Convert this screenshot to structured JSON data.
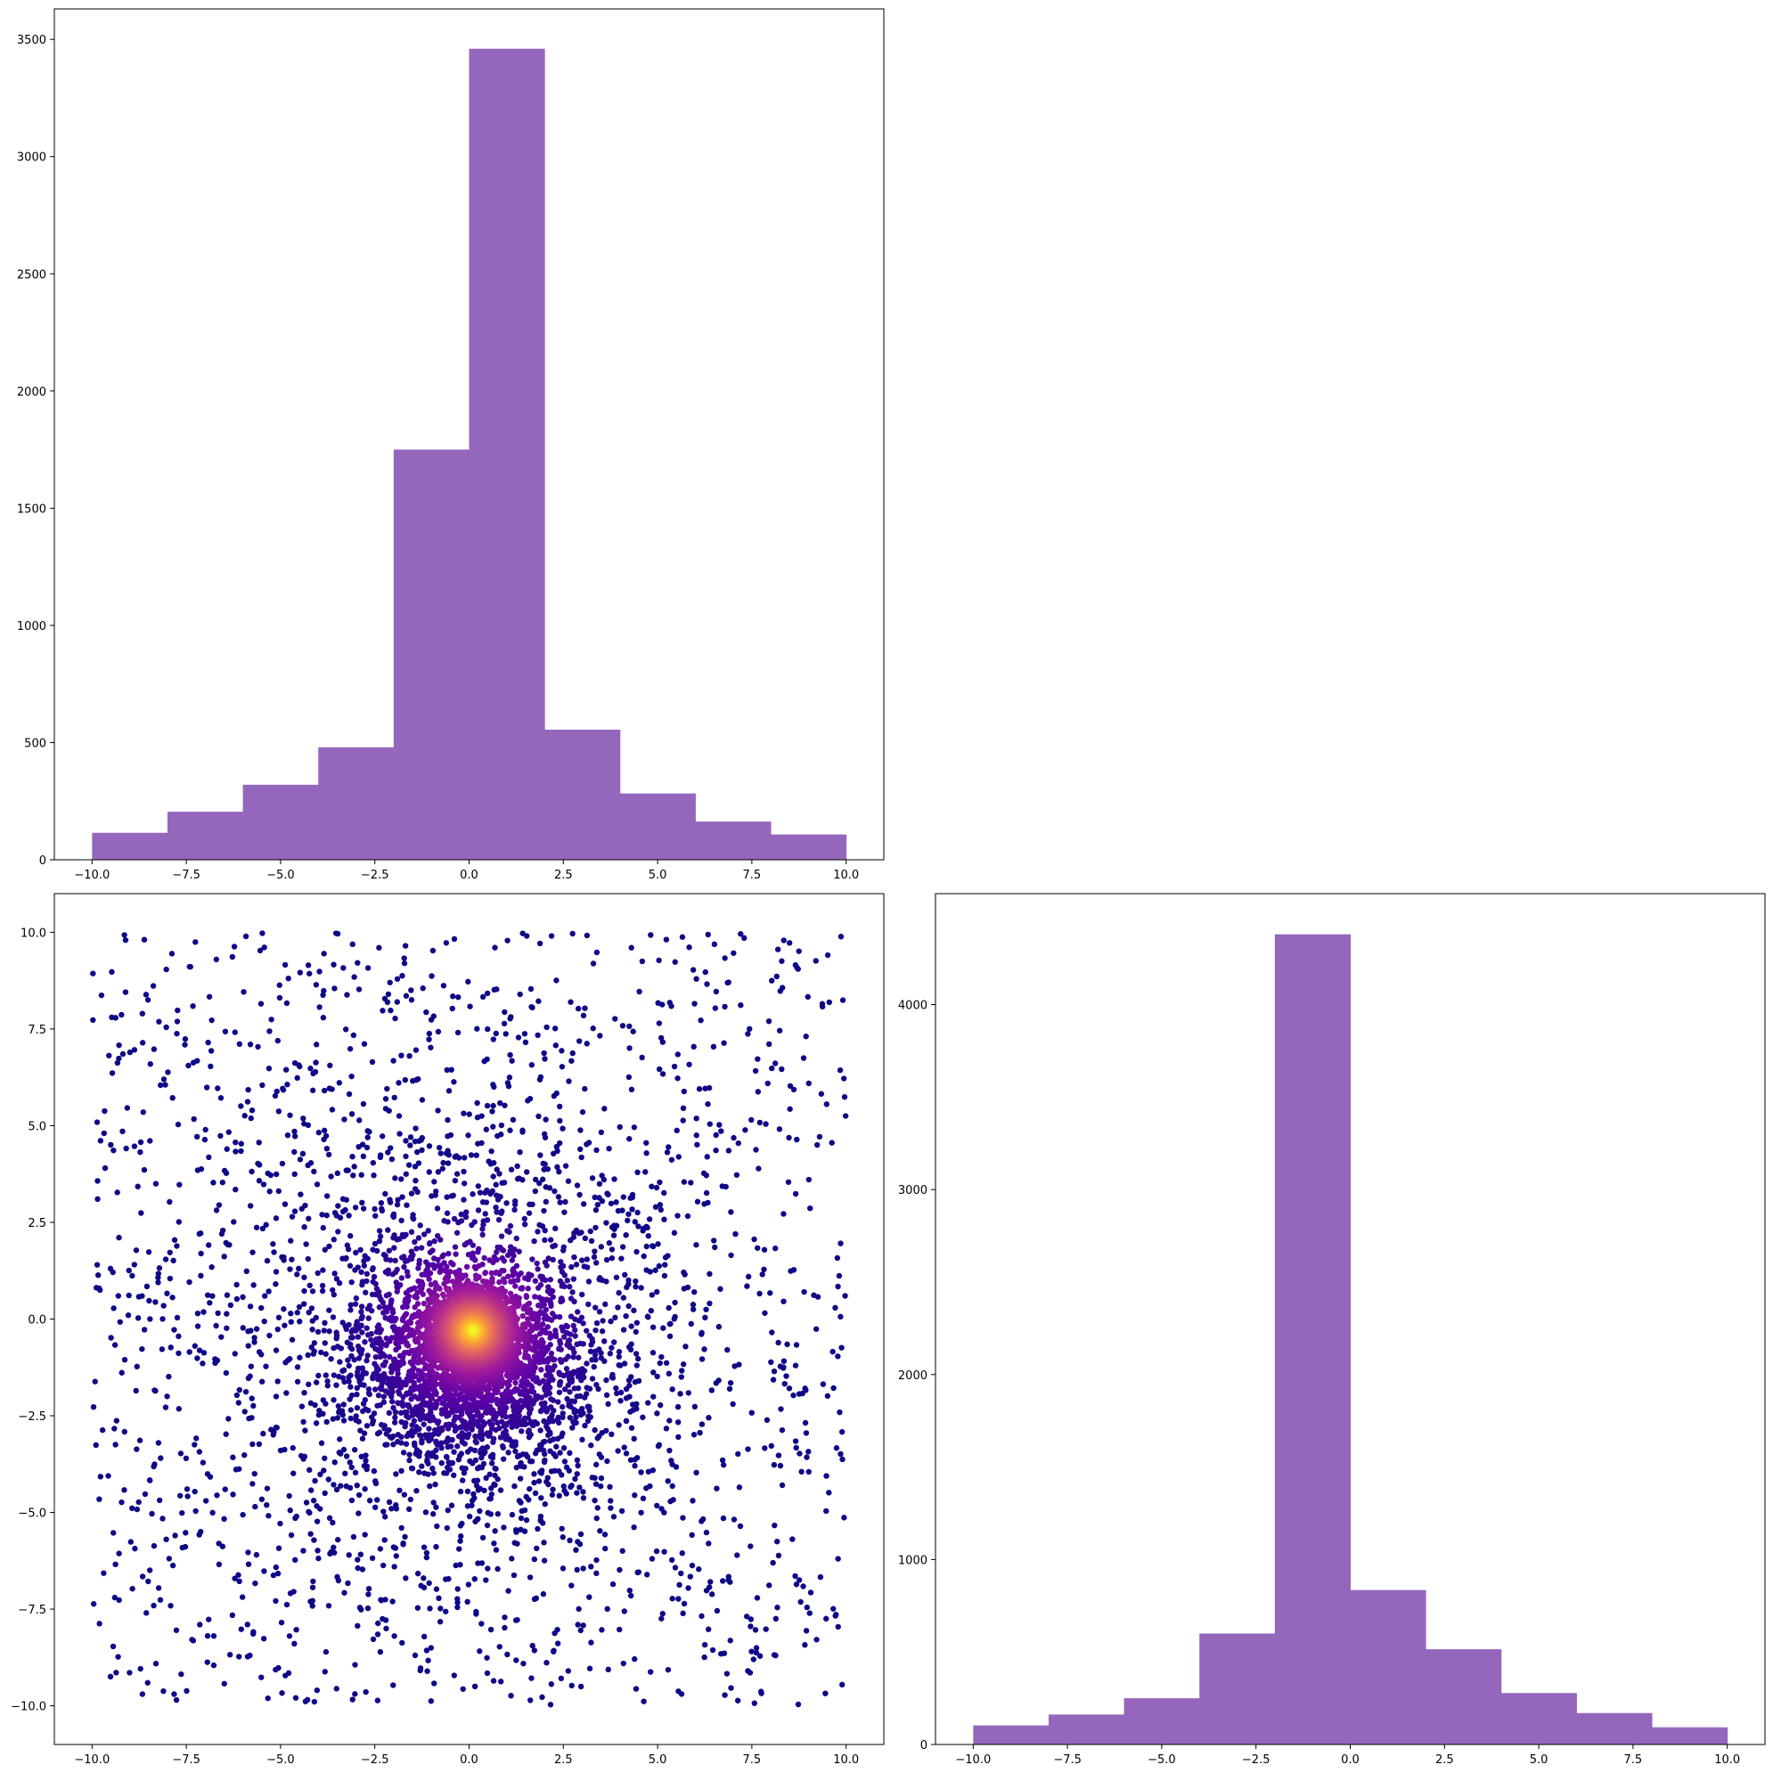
{
  "chart_data": [
    {
      "id": "hist-x",
      "type": "bar",
      "description": "Histogram of x (top-left panel)",
      "bin_edges": [
        -10,
        -8,
        -6,
        -4,
        -2,
        0,
        2,
        4,
        6,
        8,
        10
      ],
      "values": [
        115,
        205,
        320,
        480,
        1750,
        3460,
        555,
        283,
        163,
        108
      ],
      "color": "#9467bd",
      "xlim": [
        -11,
        11
      ],
      "ylim": [
        0,
        3630
      ],
      "xticks": [
        -10.0,
        -7.5,
        -5.0,
        -2.5,
        0.0,
        2.5,
        5.0,
        7.5,
        10.0
      ],
      "xtick_labels": [
        "−10.0",
        "−7.5",
        "−5.0",
        "−2.5",
        "0.0",
        "2.5",
        "5.0",
        "7.5",
        "10.0"
      ],
      "yticks": [
        0,
        500,
        1000,
        1500,
        2000,
        2500,
        3000,
        3500
      ],
      "ytick_labels": [
        "0",
        "500",
        "1000",
        "1500",
        "2000",
        "2500",
        "3000",
        "3500"
      ],
      "title": "",
      "xlabel": "",
      "ylabel": ""
    },
    {
      "id": "scatter-xy",
      "type": "scatter",
      "description": "Density-coloured scatter of (x, y), approx. 7400 points concentrated near (0, -0.5), plasma colormap",
      "n_points": 7400,
      "center": [
        0.1,
        -0.3
      ],
      "colormap": [
        "#0d0887",
        "#5c01a6",
        "#9c179e",
        "#cc4778",
        "#ed7953",
        "#fdb42f",
        "#f0f921"
      ],
      "xlim": [
        -11,
        11
      ],
      "ylim": [
        -11,
        11
      ],
      "xticks": [
        -10.0,
        -7.5,
        -5.0,
        -2.5,
        0.0,
        2.5,
        5.0,
        7.5,
        10.0
      ],
      "xtick_labels": [
        "−10.0",
        "−7.5",
        "−5.0",
        "−2.5",
        "0.0",
        "2.5",
        "5.0",
        "7.5",
        "10.0"
      ],
      "yticks": [
        -10.0,
        -7.5,
        -5.0,
        -2.5,
        0.0,
        2.5,
        5.0,
        7.5,
        10.0
      ],
      "ytick_labels": [
        "−10.0",
        "−7.5",
        "−5.0",
        "−2.5",
        "0.0",
        "2.5",
        "5.0",
        "7.5",
        "10.0"
      ],
      "title": "",
      "xlabel": "",
      "ylabel": ""
    },
    {
      "id": "hist-y",
      "type": "bar",
      "description": "Histogram of y (bottom-right panel)",
      "bin_edges": [
        -10,
        -8,
        -6,
        -4,
        -2,
        0,
        2,
        4,
        6,
        8,
        10
      ],
      "values": [
        103,
        162,
        250,
        600,
        4380,
        835,
        515,
        278,
        170,
        93
      ],
      "color": "#9467bd",
      "xlim": [
        -11,
        11
      ],
      "ylim": [
        0,
        4600
      ],
      "xticks": [
        -10.0,
        -7.5,
        -5.0,
        -2.5,
        0.0,
        2.5,
        5.0,
        7.5,
        10.0
      ],
      "xtick_labels": [
        "−10.0",
        "−7.5",
        "−5.0",
        "−2.5",
        "0.0",
        "2.5",
        "5.0",
        "7.5",
        "10.0"
      ],
      "yticks": [
        0,
        1000,
        2000,
        3000,
        4000
      ],
      "ytick_labels": [
        "0",
        "1000",
        "2000",
        "3000",
        "4000"
      ],
      "title": "",
      "xlabel": "",
      "ylabel": ""
    }
  ]
}
